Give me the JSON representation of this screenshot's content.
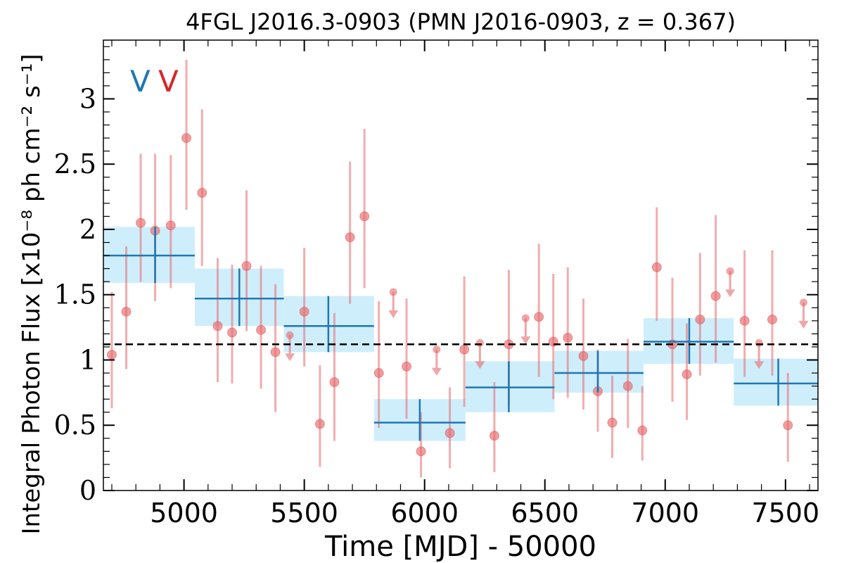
{
  "chart_data": {
    "type": "scatter",
    "title": "4FGL J2016.3-0903 (PMN J2016-0903, z = 0.367)",
    "xlabel": "Time [MJD] - 50000",
    "ylabel": "Integral Photon Flux [x10⁻⁸ ph cm⁻² s⁻¹]",
    "xlim": [
      4665,
      7635
    ],
    "ylim": [
      0,
      3.45
    ],
    "xticks": [
      5000,
      5500,
      6000,
      6500,
      7000,
      7500
    ],
    "yticks": [
      0,
      0.5,
      1,
      1.5,
      2,
      2.5,
      3
    ],
    "ytick_labels": [
      "0",
      "0.5",
      "1",
      "1.5",
      "2",
      "2.5",
      "3"
    ],
    "reference_level": 1.12,
    "markers": [
      {
        "label": "V",
        "color": "#1f77b4"
      },
      {
        "label": "V",
        "color": "#d62728"
      }
    ],
    "series": [
      {
        "kind": "detections",
        "color": "#e8696b",
        "points": [
          {
            "x": 4700,
            "y": 1.04,
            "lo": 0.63,
            "hi": 1.52
          },
          {
            "x": 4760,
            "y": 1.37,
            "lo": 0.93,
            "hi": 1.87
          },
          {
            "x": 4820,
            "y": 2.05,
            "lo": 1.6,
            "hi": 2.58
          },
          {
            "x": 4880,
            "y": 1.99,
            "lo": 1.45,
            "hi": 2.58
          },
          {
            "x": 4945,
            "y": 2.03,
            "lo": 1.55,
            "hi": 2.57
          },
          {
            "x": 5010,
            "y": 2.7,
            "lo": 2.15,
            "hi": 3.3
          },
          {
            "x": 5075,
            "y": 2.28,
            "lo": 1.72,
            "hi": 2.92
          },
          {
            "x": 5140,
            "y": 1.26,
            "lo": 0.83,
            "hi": 1.78
          },
          {
            "x": 5200,
            "y": 1.21,
            "lo": 0.82,
            "hi": 1.73
          },
          {
            "x": 5260,
            "y": 1.72,
            "lo": 1.22,
            "hi": 2.3
          },
          {
            "x": 5320,
            "y": 1.23,
            "lo": 0.78,
            "hi": 1.72
          },
          {
            "x": 5380,
            "y": 1.06,
            "lo": 0.6,
            "hi": 1.58
          },
          {
            "x": 5500,
            "y": 1.37,
            "lo": 0.95,
            "hi": 1.86
          },
          {
            "x": 5565,
            "y": 0.51,
            "lo": 0.18,
            "hi": 0.96
          },
          {
            "x": 5625,
            "y": 0.83,
            "lo": 0.38,
            "hi": 1.36
          },
          {
            "x": 5690,
            "y": 1.94,
            "lo": 1.43,
            "hi": 2.52
          },
          {
            "x": 5750,
            "y": 2.1,
            "lo": 1.55,
            "hi": 2.77
          },
          {
            "x": 5810,
            "y": 0.9,
            "lo": 0.48,
            "hi": 1.45
          },
          {
            "x": 5925,
            "y": 0.95,
            "lo": 0.55,
            "hi": 1.47
          },
          {
            "x": 5985,
            "y": 0.3,
            "lo": 0.1,
            "hi": 0.6
          },
          {
            "x": 6105,
            "y": 0.44,
            "lo": 0.17,
            "hi": 0.79
          },
          {
            "x": 6165,
            "y": 1.08,
            "lo": 0.64,
            "hi": 1.64
          },
          {
            "x": 6290,
            "y": 0.42,
            "lo": 0.14,
            "hi": 0.83
          },
          {
            "x": 6350,
            "y": 1.12,
            "lo": 0.65,
            "hi": 1.69
          },
          {
            "x": 6475,
            "y": 1.33,
            "lo": 0.87,
            "hi": 1.89
          },
          {
            "x": 6535,
            "y": 1.14,
            "lo": 0.7,
            "hi": 1.66
          },
          {
            "x": 6595,
            "y": 1.17,
            "lo": 0.71,
            "hi": 1.71
          },
          {
            "x": 6660,
            "y": 1.03,
            "lo": 0.62,
            "hi": 1.47
          },
          {
            "x": 6720,
            "y": 0.76,
            "lo": 0.45,
            "hi": 1.08
          },
          {
            "x": 6780,
            "y": 0.52,
            "lo": 0.25,
            "hi": 0.88
          },
          {
            "x": 6845,
            "y": 0.8,
            "lo": 0.48,
            "hi": 1.16
          },
          {
            "x": 6905,
            "y": 0.46,
            "lo": 0.23,
            "hi": 0.8
          },
          {
            "x": 6965,
            "y": 1.71,
            "lo": 1.3,
            "hi": 2.17
          },
          {
            "x": 7030,
            "y": 1.12,
            "lo": 0.68,
            "hi": 1.63
          },
          {
            "x": 7090,
            "y": 0.89,
            "lo": 0.54,
            "hi": 1.28
          },
          {
            "x": 7145,
            "y": 1.31,
            "lo": 0.88,
            "hi": 1.82
          },
          {
            "x": 7210,
            "y": 1.49,
            "lo": 0.98,
            "hi": 2.11
          },
          {
            "x": 7330,
            "y": 1.3,
            "lo": 0.87,
            "hi": 1.84
          },
          {
            "x": 7445,
            "y": 1.31,
            "lo": 0.88,
            "hi": 1.84
          },
          {
            "x": 7510,
            "y": 0.5,
            "lo": 0.22,
            "hi": 0.9
          }
        ]
      },
      {
        "kind": "upper_limits",
        "color": "#e8696b",
        "points": [
          {
            "x": 5440,
            "y": 1.19
          },
          {
            "x": 5870,
            "y": 1.52
          },
          {
            "x": 6050,
            "y": 1.08
          },
          {
            "x": 6230,
            "y": 1.13
          },
          {
            "x": 6420,
            "y": 1.32
          },
          {
            "x": 7270,
            "y": 1.68
          },
          {
            "x": 7390,
            "y": 1.13
          },
          {
            "x": 7575,
            "y": 1.44
          }
        ]
      },
      {
        "kind": "binned",
        "color": "#1f77b4",
        "band_color": "#cfeefc",
        "bins": [
          {
            "x0": 4665,
            "x1": 5045,
            "xc": 4880,
            "y": 1.8,
            "lo": 1.59,
            "hi": 2.02
          },
          {
            "x0": 5045,
            "x1": 5415,
            "xc": 5230,
            "y": 1.47,
            "lo": 1.26,
            "hi": 1.7
          },
          {
            "x0": 5415,
            "x1": 5790,
            "xc": 5600,
            "y": 1.26,
            "lo": 1.06,
            "hi": 1.49
          },
          {
            "x0": 5790,
            "x1": 6170,
            "xc": 5980,
            "y": 0.52,
            "lo": 0.38,
            "hi": 0.7
          },
          {
            "x0": 6170,
            "x1": 6540,
            "xc": 6350,
            "y": 0.79,
            "lo": 0.6,
            "hi": 0.99
          },
          {
            "x0": 6540,
            "x1": 6910,
            "xc": 6720,
            "y": 0.9,
            "lo": 0.75,
            "hi": 1.07
          },
          {
            "x0": 6910,
            "x1": 7285,
            "xc": 7100,
            "y": 1.14,
            "lo": 0.97,
            "hi": 1.32
          },
          {
            "x0": 7285,
            "x1": 7660,
            "xc": 7470,
            "y": 0.82,
            "lo": 0.65,
            "hi": 1.01
          }
        ]
      }
    ]
  }
}
